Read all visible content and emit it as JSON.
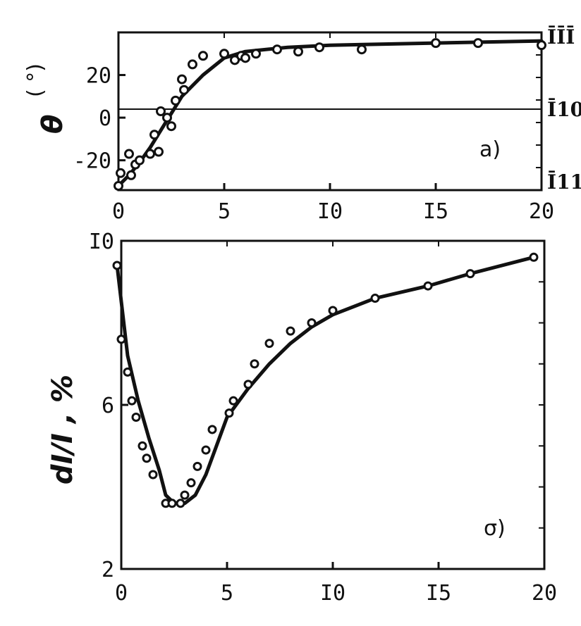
{
  "chart_data": [
    {
      "type": "scatter",
      "panel_label": "a)",
      "ylabel_symbol": "θ",
      "ylabel_unit": "( °)",
      "xlim": [
        0,
        20
      ],
      "ylim": [
        -34,
        40
      ],
      "x_ticks": [
        0,
        5,
        10,
        15,
        20
      ],
      "x_tick_labels": [
        "0",
        "5",
        "I0",
        "I5",
        "20"
      ],
      "y_ticks": [
        -20,
        0,
        20
      ],
      "y_tick_labels": [
        "-20",
        "0",
        "20"
      ],
      "right_labels": [
        {
          "text": "ĪĪĪ",
          "y": 38
        },
        {
          "text": "Ī10",
          "y": 4
        },
        {
          "text": "Ī11",
          "y": -30
        }
      ],
      "reference_line_y": 4,
      "series": [
        {
          "kind": "points",
          "x": [
            0.0,
            0.1,
            0.5,
            0.6,
            0.8,
            1.0,
            1.5,
            1.7,
            1.9,
            2.0,
            2.3,
            2.5,
            2.7,
            3.0,
            3.1,
            3.5,
            4.0,
            5.0,
            5.5,
            5.8,
            6.0,
            6.5,
            7.5,
            8.5,
            9.5,
            11.5,
            15.0,
            17.0,
            20.0
          ],
          "y": [
            -32,
            -26,
            -17,
            -27,
            -22,
            -20,
            -17,
            -8,
            -16,
            3,
            0,
            -4,
            8,
            18,
            13,
            25,
            29,
            30,
            27,
            29,
            28,
            30,
            32,
            31,
            33,
            32,
            35,
            35,
            34
          ]
        },
        {
          "kind": "fit",
          "x": [
            0,
            0.5,
            1,
            1.5,
            2,
            2.5,
            3,
            4,
            5,
            6,
            8,
            10,
            15,
            20
          ],
          "y": [
            -32,
            -27,
            -21,
            -14,
            -6,
            2,
            10,
            20,
            28,
            31,
            33,
            34,
            35,
            36
          ]
        }
      ]
    },
    {
      "type": "line",
      "panel_label": "σ)",
      "ylabel": "dI/I , %",
      "xlim": [
        0,
        20
      ],
      "ylim": [
        2,
        10
      ],
      "x_ticks": [
        0,
        5,
        10,
        15,
        20
      ],
      "x_tick_labels": [
        "0",
        "5",
        "I0",
        "I5",
        "20"
      ],
      "y_ticks": [
        2,
        6,
        10
      ],
      "y_tick_labels": [
        "2",
        "6",
        "I0"
      ],
      "series": [
        {
          "kind": "points",
          "x": [
            -0.2,
            0.0,
            0.3,
            0.5,
            0.7,
            1.0,
            1.2,
            1.5,
            2.1,
            2.4,
            2.8,
            3.0,
            3.3,
            3.6,
            4.0,
            4.3,
            5.1,
            5.3,
            6.0,
            6.3,
            7.0,
            8.0,
            9.0,
            10.0,
            12.0,
            14.5,
            16.5,
            19.5
          ],
          "y": [
            9.4,
            7.6,
            6.8,
            6.1,
            5.7,
            5.0,
            4.7,
            4.3,
            3.6,
            3.6,
            3.6,
            3.8,
            4.1,
            4.5,
            4.9,
            5.4,
            5.8,
            6.1,
            6.5,
            7.0,
            7.5,
            7.8,
            8.0,
            8.3,
            8.6,
            8.9,
            9.2,
            9.6
          ]
        },
        {
          "kind": "fit",
          "x": [
            -0.2,
            0.3,
            0.8,
            1.3,
            1.8,
            2.1,
            2.5,
            3.0,
            3.5,
            4.0,
            4.5,
            5.0,
            6.0,
            7.0,
            8.0,
            9.0,
            10.0,
            12.0,
            14.5,
            16.5,
            19.5
          ],
          "y": [
            9.4,
            7.2,
            6.1,
            5.2,
            4.4,
            3.8,
            3.6,
            3.6,
            3.8,
            4.3,
            5.0,
            5.7,
            6.4,
            7.0,
            7.5,
            7.9,
            8.2,
            8.6,
            8.9,
            9.2,
            9.6
          ]
        }
      ]
    }
  ]
}
